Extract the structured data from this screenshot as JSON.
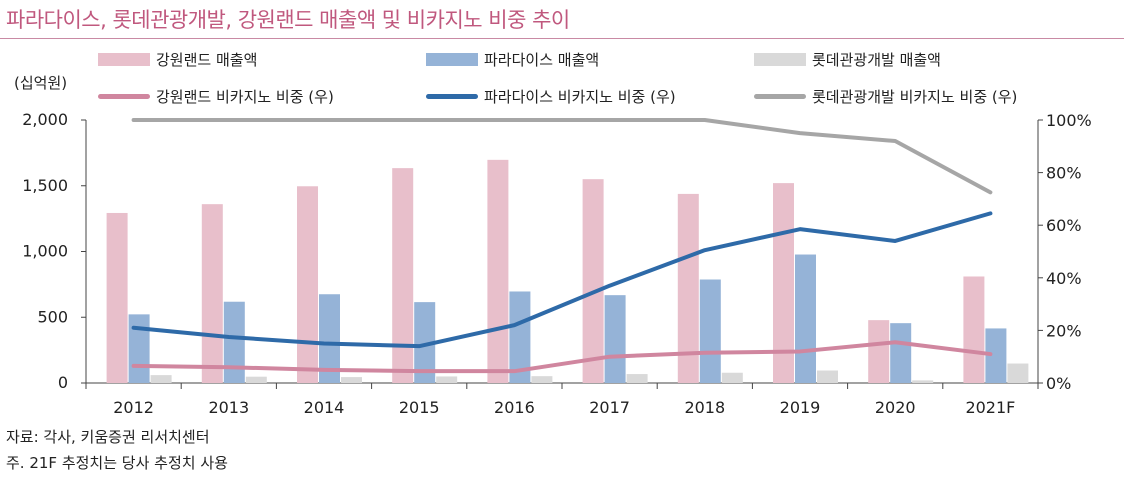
{
  "title": "파라다이스, 롯데관광개발, 강원랜드 매출액 및 비카지노 비중 추이",
  "unit_left": "(십억원)",
  "colors": {
    "kangwon_bar": "#e8bfcb",
    "paradise_bar": "#95b3d7",
    "lotte_bar": "#d9d9d9",
    "kangwon_line": "#d0869f",
    "paradise_line": "#2e6aa8",
    "lotte_line": "#a6a6a6",
    "title": "#c0587e"
  },
  "legend": [
    {
      "label": "강원랜드 매출액",
      "kind": "box",
      "color": "#e8bfcb"
    },
    {
      "label": "파라다이스 매출액",
      "kind": "box",
      "color": "#95b3d7"
    },
    {
      "label": "롯데관광개발 매출액",
      "kind": "box",
      "color": "#d9d9d9"
    },
    {
      "label": "강원랜드 비카지노 비중 (우)",
      "kind": "line",
      "color": "#d0869f"
    },
    {
      "label": "파라다이스 비카지노 비중 (우)",
      "kind": "line",
      "color": "#2e6aa8"
    },
    {
      "label": "롯데관광개발 비카지노 비중 (우)",
      "kind": "line",
      "color": "#a6a6a6"
    }
  ],
  "chart_data": {
    "type": "bar",
    "categories": [
      "2012",
      "2013",
      "2014",
      "2015",
      "2016",
      "2017",
      "2018",
      "2019",
      "2020",
      "2021F"
    ],
    "bar_series": [
      {
        "name": "강원랜드 매출액",
        "values": [
          1293,
          1360,
          1496,
          1634,
          1697,
          1550,
          1438,
          1520,
          478,
          810
        ]
      },
      {
        "name": "파라다이스 매출액",
        "values": [
          522,
          618,
          675,
          615,
          696,
          668,
          787,
          977,
          455,
          415
        ]
      },
      {
        "name": "롯데관광개발 매출액",
        "values": [
          60,
          48,
          45,
          50,
          52,
          68,
          78,
          95,
          20,
          148
        ]
      }
    ],
    "line_series": [
      {
        "name": "강원랜드 비카지노 비중 (우)",
        "values": [
          6.5,
          6,
          5,
          4.5,
          4.5,
          10,
          11.5,
          12,
          15.5,
          11
        ]
      },
      {
        "name": "파라다이스 비카지노 비중 (우)",
        "values": [
          21,
          17.5,
          15,
          14,
          22,
          37,
          50.5,
          58.5,
          54,
          64.5
        ]
      },
      {
        "name": "롯데관광개발 비카지노 비중 (우)",
        "values": [
          100,
          100,
          100,
          100,
          100,
          100,
          100,
          95,
          92,
          72.5
        ]
      }
    ],
    "y_left": {
      "min": 0,
      "max": 2000,
      "ticks": [
        0,
        500,
        1000,
        1500,
        2000
      ],
      "tick_labels": [
        "0",
        "500",
        "1,000",
        "1,500",
        "2,000"
      ]
    },
    "y_right": {
      "min": 0,
      "max": 100,
      "ticks": [
        0,
        20,
        40,
        60,
        80,
        100
      ],
      "tick_labels": [
        "0%",
        "20%",
        "40%",
        "60%",
        "80%",
        "100%"
      ]
    },
    "grid": false,
    "legend_position": "top"
  },
  "footnotes": {
    "source": "자료: 각사, 키움증권 리서치센터",
    "note": "주. 21F 추정치는 당사 추정치 사용"
  }
}
